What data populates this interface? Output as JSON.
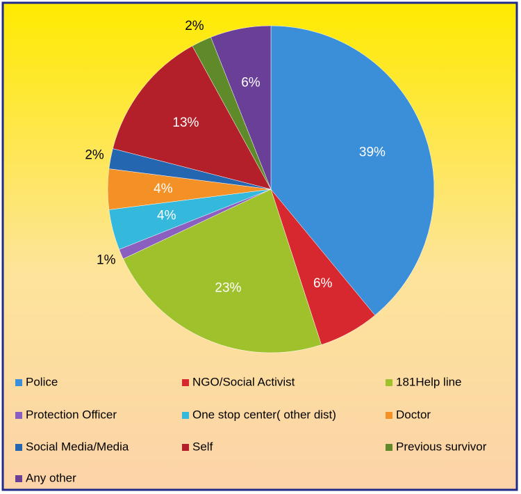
{
  "chart_data": {
    "type": "pie",
    "categories": [
      "Police",
      "NGO/Social Activist",
      "181Help line",
      "Protection Officer",
      "One stop center( other dist)",
      "Doctor",
      "Social Media/Media",
      "Self",
      "Previous survivor",
      "Any other"
    ],
    "values": [
      39,
      6,
      23,
      1,
      4,
      4,
      2,
      13,
      2,
      6
    ],
    "value_labels": [
      "39%",
      "6%",
      "23%",
      "1%",
      "4%",
      "4%",
      "2%",
      "13%",
      "2%",
      "6%"
    ],
    "colors": [
      "#3a8fd8",
      "#d8282f",
      "#9fc22c",
      "#8a5fc0",
      "#34b8dc",
      "#f39026",
      "#2466b0",
      "#b3202a",
      "#5e8a2a",
      "#6a3f98"
    ],
    "legend": "bottom"
  }
}
